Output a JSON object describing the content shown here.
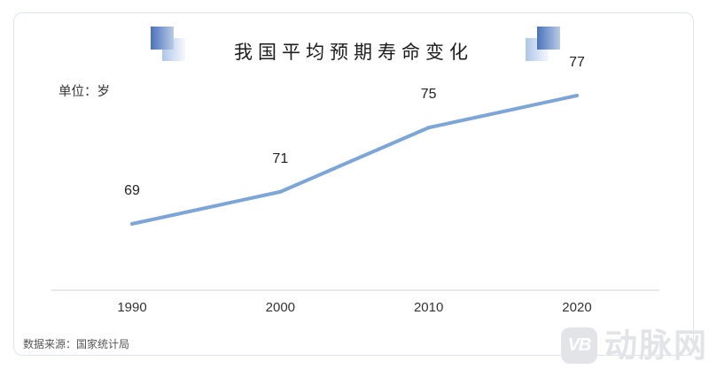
{
  "card": {
    "title": "我国平均预期寿命变化",
    "unit_label": "单位：岁",
    "source_label": "数据来源：国家统计局"
  },
  "watermark": {
    "badge_text": "VB",
    "brand_text": "动脉网"
  },
  "theme": {
    "line_color": "#7CA5D8",
    "axis_color": "#d9d9d9",
    "card_border": "#dde5f2",
    "deco_dark_from": "#4a72b8",
    "deco_dark_to": "#b9cbe7",
    "deco_light_from": "#aec6e8",
    "deco_light_to": "#f6f9fd",
    "watermark_color": "#e3e4e8"
  },
  "chart_data": {
    "type": "line",
    "title": "我国平均预期寿命变化",
    "unit": "岁",
    "categories": [
      "1990",
      "2000",
      "2010",
      "2020"
    ],
    "values": [
      69,
      71,
      75,
      77
    ],
    "xlabel": "",
    "ylabel": "单位：岁",
    "ylim": [
      65,
      80
    ],
    "grid": false,
    "y_axis_visible": false,
    "data_labels_visible": true,
    "legend": "none",
    "source": "数据来源：国家统计局"
  }
}
